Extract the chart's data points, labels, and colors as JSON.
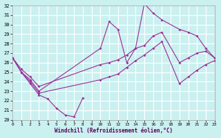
{
  "xlabel": "Windchill (Refroidissement éolien,°C)",
  "bg_color": "#caf0f0",
  "grid_color": "#ffffff",
  "line_color": "#993399",
  "xlim": [
    0,
    23
  ],
  "ylim": [
    20,
    32
  ],
  "yticks": [
    20,
    21,
    22,
    23,
    24,
    25,
    26,
    27,
    28,
    29,
    30,
    31,
    32
  ],
  "xticks": [
    0,
    1,
    2,
    3,
    4,
    5,
    6,
    7,
    8,
    9,
    10,
    11,
    12,
    13,
    14,
    15,
    16,
    17,
    18,
    19,
    20,
    21,
    22,
    23
  ],
  "series": [
    {
      "x": [
        0,
        1,
        2,
        3,
        4,
        5,
        6,
        7,
        8
      ],
      "y": [
        26.5,
        25.0,
        23.8,
        22.6,
        22.2,
        21.2,
        20.5,
        20.3,
        22.3
      ]
    },
    {
      "x": [
        0,
        1,
        2,
        3,
        10,
        11,
        12,
        13,
        14,
        15,
        16,
        17,
        19,
        20,
        21,
        22,
        23
      ],
      "y": [
        26.5,
        25.0,
        24.2,
        23.0,
        27.5,
        30.3,
        29.5,
        26.0,
        27.5,
        32.2,
        31.2,
        30.5,
        29.5,
        29.2,
        28.8,
        27.5,
        26.5
      ]
    },
    {
      "x": [
        0,
        1,
        2,
        3,
        10,
        11,
        12,
        13,
        14,
        15,
        16,
        17,
        19,
        20,
        21,
        22,
        23
      ],
      "y": [
        26.5,
        25.3,
        24.5,
        23.5,
        25.8,
        26.0,
        26.3,
        26.8,
        27.5,
        27.8,
        28.8,
        29.2,
        26.0,
        26.5,
        27.0,
        27.2,
        26.5
      ]
    },
    {
      "x": [
        0,
        1,
        2,
        3,
        10,
        11,
        12,
        13,
        14,
        15,
        16,
        17,
        19,
        20,
        21,
        22,
        23
      ],
      "y": [
        26.5,
        25.0,
        24.0,
        22.8,
        24.2,
        24.5,
        24.8,
        25.5,
        26.2,
        26.8,
        27.5,
        28.2,
        23.8,
        24.5,
        25.2,
        25.8,
        26.2
      ]
    }
  ]
}
